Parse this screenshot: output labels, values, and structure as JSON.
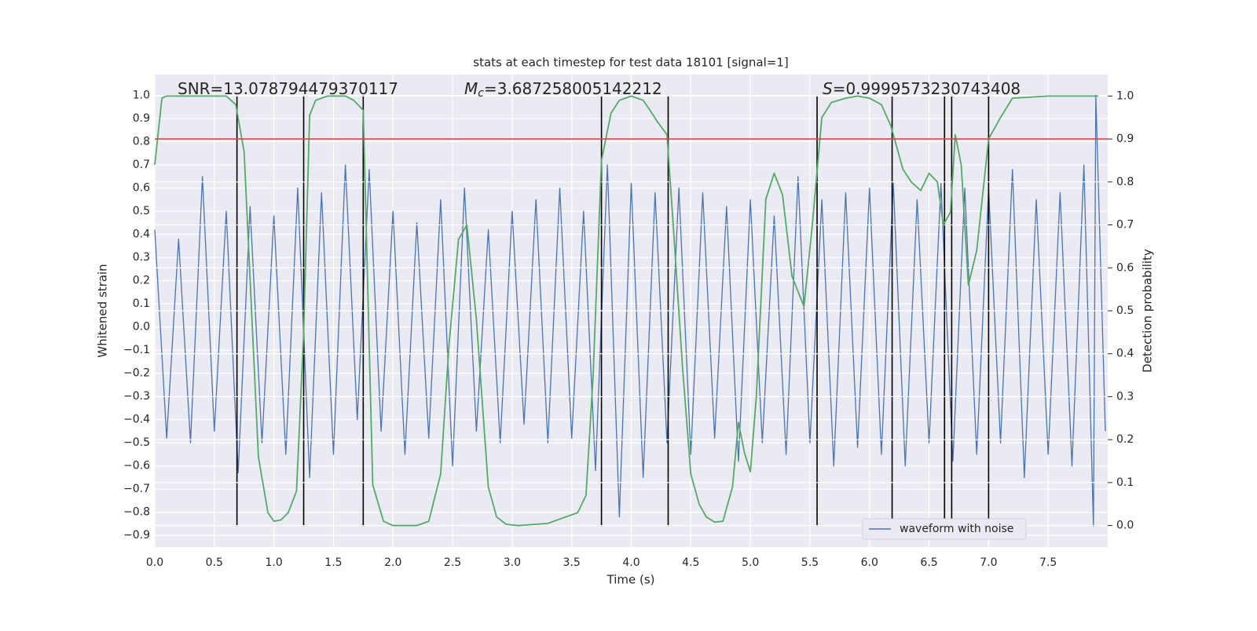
{
  "chart_data": {
    "type": "line",
    "title": "stats at each timestep for test data 18101 [signal=1]",
    "xlabel": "Time (s)",
    "ylabel": "Whitened strain",
    "y2label": "Detection probability",
    "grid": true,
    "legend": "lower right",
    "annotations": [
      {
        "text": "SNR=13.078794479370117"
      },
      {
        "symbol": "M",
        "subscript": "c",
        "text": "=3.687258005142212"
      },
      {
        "symbol": "S",
        "text": "=0.9999573230743408"
      }
    ],
    "xlim": [
      0,
      8.0
    ],
    "ylim": [
      -0.95,
      1.09
    ],
    "y2lim": [
      -0.05,
      1.05
    ],
    "xticks": [
      {
        "value": 0,
        "label": "0.0"
      },
      {
        "value": 0.5,
        "label": "0.5"
      },
      {
        "value": 1,
        "label": "1.0"
      },
      {
        "value": 1.5,
        "label": "1.5"
      },
      {
        "value": 2,
        "label": "2.0"
      },
      {
        "value": 2.5,
        "label": "2.5"
      },
      {
        "value": 3,
        "label": "3.0"
      },
      {
        "value": 3.5,
        "label": "3.5"
      },
      {
        "value": 4,
        "label": "4.0"
      },
      {
        "value": 4.5,
        "label": "4.5"
      },
      {
        "value": 5,
        "label": "5.0"
      },
      {
        "value": 5.5,
        "label": "5.5"
      },
      {
        "value": 6,
        "label": "6.0"
      },
      {
        "value": 6.5,
        "label": "6.5"
      },
      {
        "value": 7,
        "label": "7.0"
      },
      {
        "value": 7.5,
        "label": "7.5"
      }
    ],
    "yticks": [
      {
        "value": -0.9,
        "label": "−0.9"
      },
      {
        "value": -0.8,
        "label": "−0.8"
      },
      {
        "value": -0.7,
        "label": "−0.7"
      },
      {
        "value": -0.6,
        "label": "−0.6"
      },
      {
        "value": -0.5,
        "label": "−0.5"
      },
      {
        "value": -0.4,
        "label": "−0.4"
      },
      {
        "value": -0.3,
        "label": "−0.3"
      },
      {
        "value": -0.2,
        "label": "−0.2"
      },
      {
        "value": -0.1,
        "label": "−0.1"
      },
      {
        "value": 0,
        "label": "0.0"
      },
      {
        "value": 0.1,
        "label": "0.1"
      },
      {
        "value": 0.2,
        "label": "0.2"
      },
      {
        "value": 0.3,
        "label": "0.3"
      },
      {
        "value": 0.4,
        "label": "0.4"
      },
      {
        "value": 0.5,
        "label": "0.5"
      },
      {
        "value": 0.6,
        "label": "0.6"
      },
      {
        "value": 0.7,
        "label": "0.7"
      },
      {
        "value": 0.8,
        "label": "0.8"
      },
      {
        "value": 0.9,
        "label": "0.9"
      },
      {
        "value": 1,
        "label": "1.0"
      }
    ],
    "y2ticks": [
      {
        "value": 0,
        "label": "0.0"
      },
      {
        "value": 0.1,
        "label": "0.1"
      },
      {
        "value": 0.2,
        "label": "0.2"
      },
      {
        "value": 0.3,
        "label": "0.3"
      },
      {
        "value": 0.4,
        "label": "0.4"
      },
      {
        "value": 0.5,
        "label": "0.5"
      },
      {
        "value": 0.6,
        "label": "0.6"
      },
      {
        "value": 0.7,
        "label": "0.7"
      },
      {
        "value": 0.8,
        "label": "0.8"
      },
      {
        "value": 0.9,
        "label": "0.9"
      },
      {
        "value": 1,
        "label": "1.0"
      }
    ],
    "series": [
      {
        "name": "waveform with noise",
        "color": "#4c72b0",
        "x": [
          0.0,
          0.1,
          0.2,
          0.3,
          0.4,
          0.5,
          0.6,
          0.7,
          0.8,
          0.9,
          1.0,
          1.1,
          1.2,
          1.3,
          1.4,
          1.5,
          1.6,
          1.7,
          1.8,
          1.9,
          2.0,
          2.1,
          2.2,
          2.3,
          2.4,
          2.5,
          2.6,
          2.7,
          2.8,
          2.9,
          3.0,
          3.1,
          3.2,
          3.3,
          3.4,
          3.5,
          3.6,
          3.7,
          3.8,
          3.9,
          4.0,
          4.1,
          4.2,
          4.3,
          4.4,
          4.5,
          4.6,
          4.7,
          4.8,
          4.9,
          5.0,
          5.1,
          5.2,
          5.3,
          5.4,
          5.5,
          5.6,
          5.7,
          5.8,
          5.9,
          6.0,
          6.1,
          6.2,
          6.3,
          6.4,
          6.5,
          6.6,
          6.7,
          6.8,
          6.9,
          7.0,
          7.1,
          7.2,
          7.3,
          7.4,
          7.5,
          7.6,
          7.7,
          7.8,
          7.88,
          7.9,
          7.98
        ],
        "values": [
          0.42,
          -0.48,
          0.38,
          -0.5,
          0.65,
          -0.45,
          0.5,
          -0.63,
          0.52,
          -0.5,
          0.48,
          -0.55,
          0.6,
          -0.65,
          0.58,
          -0.55,
          0.7,
          -0.4,
          0.68,
          -0.45,
          0.5,
          -0.55,
          0.45,
          -0.48,
          0.55,
          -0.6,
          0.6,
          -0.45,
          0.42,
          -0.5,
          0.5,
          -0.42,
          0.55,
          -0.5,
          0.6,
          -0.48,
          0.5,
          -0.62,
          0.7,
          -0.82,
          0.62,
          -0.65,
          0.58,
          -0.5,
          0.6,
          -0.55,
          0.58,
          -0.48,
          0.52,
          -0.58,
          0.55,
          -0.5,
          0.48,
          -0.55,
          0.65,
          -0.5,
          0.55,
          -0.6,
          0.58,
          -0.52,
          0.6,
          -0.55,
          0.62,
          -0.6,
          0.55,
          -0.5,
          0.62,
          -0.58,
          0.6,
          -0.55,
          0.6,
          -0.5,
          0.68,
          -0.65,
          0.55,
          -0.55,
          0.58,
          -0.6,
          0.7,
          -0.86,
          1.0,
          -0.45
        ]
      },
      {
        "color": "#55a868",
        "axis": "y2",
        "x": [
          0.0,
          0.06,
          0.1,
          0.6,
          0.68,
          0.75,
          0.8,
          0.87,
          0.95,
          1.0,
          1.06,
          1.12,
          1.19,
          1.25,
          1.3,
          1.35,
          1.45,
          1.6,
          1.67,
          1.75,
          1.83,
          1.92,
          2.0,
          2.2,
          2.3,
          2.4,
          2.47,
          2.55,
          2.62,
          2.7,
          2.8,
          2.87,
          2.95,
          3.05,
          3.3,
          3.45,
          3.55,
          3.62,
          3.68,
          3.75,
          3.83,
          3.9,
          4.0,
          4.1,
          4.15,
          4.22,
          4.3,
          4.35,
          4.43,
          4.5,
          4.57,
          4.63,
          4.7,
          4.77,
          4.85,
          4.9,
          4.95,
          5.0,
          5.05,
          5.13,
          5.2,
          5.27,
          5.35,
          5.45,
          5.52,
          5.6,
          5.68,
          5.8,
          5.9,
          6.0,
          6.1,
          6.18,
          6.28,
          6.35,
          6.43,
          6.5,
          6.57,
          6.62,
          6.68,
          6.72,
          6.77,
          6.83,
          6.9,
          7.0,
          7.1,
          7.2,
          7.5,
          7.92
        ],
        "values": [
          0.84,
          0.995,
          1.0,
          1.0,
          0.98,
          0.87,
          0.575,
          0.16,
          0.03,
          0.01,
          0.013,
          0.03,
          0.08,
          0.45,
          0.955,
          0.99,
          1.0,
          1.0,
          0.99,
          0.967,
          0.095,
          0.01,
          0.0,
          0.0,
          0.01,
          0.12,
          0.42,
          0.666,
          0.7,
          0.48,
          0.09,
          0.02,
          0.003,
          0.0,
          0.005,
          0.02,
          0.03,
          0.07,
          0.35,
          0.85,
          0.96,
          0.99,
          1.0,
          0.99,
          0.97,
          0.94,
          0.91,
          0.71,
          0.37,
          0.12,
          0.05,
          0.02,
          0.008,
          0.01,
          0.09,
          0.24,
          0.17,
          0.125,
          0.3,
          0.76,
          0.82,
          0.77,
          0.58,
          0.51,
          0.7,
          0.95,
          0.985,
          0.995,
          1.0,
          0.995,
          0.98,
          0.93,
          0.83,
          0.8,
          0.78,
          0.82,
          0.8,
          0.7,
          0.73,
          0.91,
          0.84,
          0.56,
          0.64,
          0.9,
          0.95,
          0.995,
          1.0,
          1.0
        ]
      }
    ],
    "threshold": {
      "value": 0.9,
      "axis": "y2",
      "color": "#c44e52"
    },
    "vlines": {
      "x": [
        0.69,
        1.25,
        1.75,
        3.75,
        4.31,
        5.56,
        6.19,
        6.63,
        6.69,
        7.0
      ],
      "ymin": -0.86,
      "ymax": 1.0,
      "color": "#000000"
    }
  }
}
